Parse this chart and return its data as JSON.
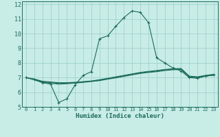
{
  "title": "",
  "xlabel": "Humidex (Indice chaleur)",
  "ylabel": "",
  "bg_color": "#c8ece6",
  "grid_color": "#a0d4cc",
  "line_color": "#1a6b5a",
  "xlim": [
    -0.5,
    23.5
  ],
  "ylim": [
    5,
    12.2
  ],
  "yticks": [
    5,
    6,
    7,
    8,
    9,
    10,
    11,
    12
  ],
  "xticks": [
    0,
    1,
    2,
    3,
    4,
    5,
    6,
    7,
    8,
    9,
    10,
    11,
    12,
    13,
    14,
    15,
    16,
    17,
    18,
    19,
    20,
    21,
    22,
    23
  ],
  "series": [
    {
      "x": [
        0,
        1,
        2,
        3,
        4,
        5,
        6,
        7,
        8,
        9,
        10,
        11,
        12,
        13,
        14,
        15,
        16,
        17,
        18,
        19,
        20,
        21,
        22,
        23
      ],
      "y": [
        7.0,
        6.85,
        6.65,
        6.55,
        5.3,
        5.55,
        6.5,
        7.15,
        7.4,
        9.65,
        9.85,
        10.5,
        11.1,
        11.55,
        11.45,
        10.75,
        8.35,
        8.0,
        7.65,
        7.45,
        7.0,
        6.95,
        7.1,
        7.2
      ],
      "marker": "+"
    },
    {
      "x": [
        0,
        1,
        2,
        3,
        4,
        5,
        6,
        7,
        8,
        9,
        10,
        11,
        12,
        13,
        14,
        15,
        16,
        17,
        18,
        19,
        20,
        21,
        22,
        23
      ],
      "y": [
        7.0,
        6.9,
        6.75,
        6.7,
        6.65,
        6.65,
        6.68,
        6.72,
        6.77,
        6.85,
        6.95,
        7.05,
        7.15,
        7.25,
        7.35,
        7.42,
        7.48,
        7.55,
        7.6,
        7.62,
        7.1,
        7.05,
        7.15,
        7.22
      ],
      "marker": null
    },
    {
      "x": [
        0,
        1,
        2,
        3,
        4,
        5,
        6,
        7,
        8,
        9,
        10,
        11,
        12,
        13,
        14,
        15,
        16,
        17,
        18,
        19,
        20,
        21,
        22,
        23
      ],
      "y": [
        7.0,
        6.88,
        6.7,
        6.65,
        6.6,
        6.62,
        6.65,
        6.7,
        6.75,
        6.82,
        6.92,
        7.02,
        7.12,
        7.22,
        7.32,
        7.38,
        7.44,
        7.52,
        7.57,
        7.58,
        7.08,
        7.02,
        7.12,
        7.18
      ],
      "marker": null
    },
    {
      "x": [
        0,
        1,
        2,
        3,
        4,
        5,
        6,
        7,
        8,
        9,
        10,
        11,
        12,
        13,
        14,
        15,
        16,
        17,
        18,
        19,
        20,
        21,
        22,
        23
      ],
      "y": [
        7.0,
        6.86,
        6.68,
        6.62,
        6.55,
        6.58,
        6.62,
        6.67,
        6.73,
        6.79,
        6.89,
        6.98,
        7.08,
        7.18,
        7.28,
        7.35,
        7.4,
        7.48,
        7.53,
        7.55,
        7.05,
        7.0,
        7.1,
        7.15
      ],
      "marker": null
    }
  ]
}
